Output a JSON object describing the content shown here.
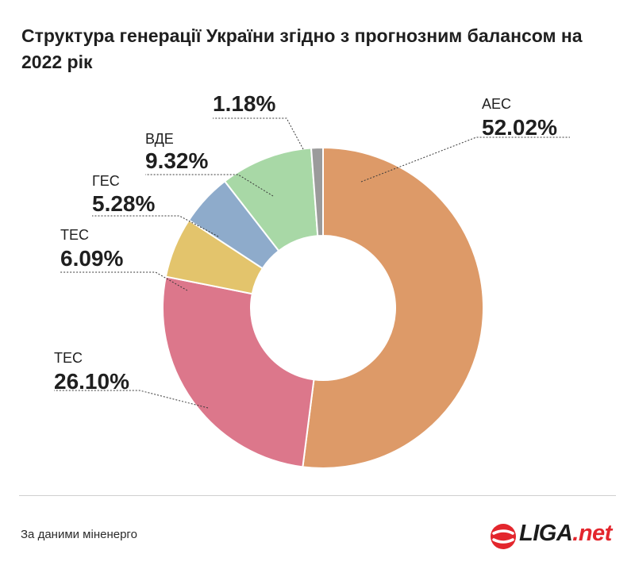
{
  "title": "Структура генерації України згідно з прогнозним балансом на 2022 рік",
  "source": "За даними міненерго",
  "logo": {
    "main": "LIGA",
    "suffix": ".net",
    "accent": "#e3262d"
  },
  "chart_data": {
    "type": "pie",
    "donut": true,
    "slices": [
      {
        "name": "АЕС",
        "label": "52.02%",
        "value": 52.02,
        "color": "#dd9a68"
      },
      {
        "name": "ТЕС",
        "label": "26.10%",
        "value": 26.1,
        "color": "#dc778b"
      },
      {
        "name": "ТЕС",
        "label": "6.09%",
        "value": 6.09,
        "color": "#e3c46c"
      },
      {
        "name": "ГЕС",
        "label": "5.28%",
        "value": 5.28,
        "color": "#8eabcb"
      },
      {
        "name": "ВДЕ",
        "label": "9.32%",
        "value": 9.32,
        "color": "#a8d8a6"
      },
      {
        "name": "",
        "label": "1.18%",
        "value": 1.18,
        "color": "#9b9b9b"
      }
    ]
  }
}
